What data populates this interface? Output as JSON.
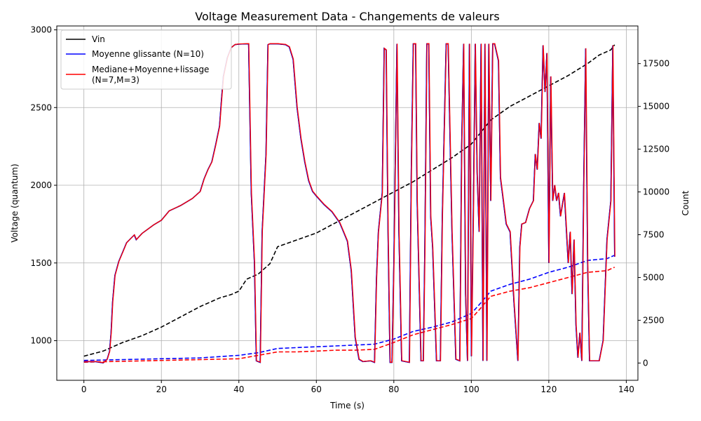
{
  "chart_data": {
    "type": "line",
    "title": "Voltage Measurement Data - Changements de valeurs",
    "xlabel": "Time (s)",
    "ylabel": "Voltage (quantum)",
    "y2label": "Count",
    "xlim": [
      -7,
      143
    ],
    "ylim": [
      745,
      3025
    ],
    "y2lim": [
      -1010,
      19700
    ],
    "xticks": [
      0,
      20,
      40,
      60,
      80,
      100,
      120,
      140
    ],
    "yticks": [
      1000,
      1500,
      2000,
      2500,
      3000
    ],
    "y2ticks": [
      0,
      2500,
      5000,
      7500,
      10000,
      12500,
      15000,
      17500
    ],
    "grid": true,
    "legend_position": "top-left",
    "legend": [
      {
        "label": "Vin",
        "color": "#000000",
        "style": "solid"
      },
      {
        "label": "Moyenne glissante (N=10)",
        "color": "#0000ff",
        "style": "solid"
      },
      {
        "label": "Mediane+Moyenne+lissage",
        "label2": "(N=7,M=3)",
        "color": "#ff0000",
        "style": "solid"
      }
    ],
    "voltage_series": {
      "name": "Vin",
      "color": "#000000",
      "points": [
        [
          0,
          865
        ],
        [
          3,
          865
        ],
        [
          5,
          857
        ],
        [
          6,
          880
        ],
        [
          6.6,
          930
        ],
        [
          7,
          1050
        ],
        [
          7.4,
          1250
        ],
        [
          8,
          1420
        ],
        [
          9,
          1510
        ],
        [
          10,
          1570
        ],
        [
          11,
          1630
        ],
        [
          12,
          1655
        ],
        [
          13,
          1680
        ],
        [
          13.5,
          1650
        ],
        [
          15,
          1690
        ],
        [
          18,
          1745
        ],
        [
          20,
          1775
        ],
        [
          22,
          1835
        ],
        [
          25,
          1870
        ],
        [
          28,
          1915
        ],
        [
          30,
          1960
        ],
        [
          31,
          2040
        ],
        [
          32,
          2100
        ],
        [
          33,
          2150
        ],
        [
          34,
          2260
        ],
        [
          35,
          2380
        ],
        [
          35.5,
          2550
        ],
        [
          36,
          2700
        ],
        [
          37,
          2820
        ],
        [
          38,
          2885
        ],
        [
          39,
          2905
        ],
        [
          40,
          2908
        ],
        [
          42.5,
          2910
        ],
        [
          43.2,
          1950
        ],
        [
          44,
          1500
        ],
        [
          44.5,
          870
        ],
        [
          45.5,
          860
        ],
        [
          46,
          1700
        ],
        [
          47,
          2200
        ],
        [
          47.5,
          2905
        ],
        [
          48,
          2910
        ],
        [
          50,
          2910
        ],
        [
          52,
          2905
        ],
        [
          53,
          2890
        ],
        [
          54,
          2810
        ],
        [
          55,
          2500
        ],
        [
          56,
          2300
        ],
        [
          57,
          2150
        ],
        [
          58,
          2030
        ],
        [
          59,
          1960
        ],
        [
          60,
          1930
        ],
        [
          62,
          1875
        ],
        [
          64,
          1830
        ],
        [
          66,
          1760
        ],
        [
          67,
          1700
        ],
        [
          68,
          1640
        ],
        [
          69,
          1450
        ],
        [
          70,
          1020
        ],
        [
          71,
          880
        ],
        [
          72,
          865
        ],
        [
          74,
          870
        ],
        [
          75,
          860
        ],
        [
          75.5,
          1400
        ],
        [
          76,
          1700
        ],
        [
          77,
          1950
        ],
        [
          77.5,
          2880
        ],
        [
          78,
          2870
        ],
        [
          78.5,
          1700
        ],
        [
          79,
          860
        ],
        [
          79.5,
          860
        ],
        [
          80,
          1500
        ],
        [
          80.8,
          2910
        ],
        [
          81.3,
          1700
        ],
        [
          82,
          870
        ],
        [
          83,
          865
        ],
        [
          84,
          860
        ],
        [
          84.5,
          2100
        ],
        [
          85,
          2910
        ],
        [
          85.6,
          2910
        ],
        [
          86,
          1900
        ],
        [
          87,
          870
        ],
        [
          87.6,
          870
        ],
        [
          88,
          1600
        ],
        [
          88.5,
          2910
        ],
        [
          89,
          2910
        ],
        [
          89.5,
          1800
        ],
        [
          90,
          1600
        ],
        [
          91,
          870
        ],
        [
          92,
          870
        ],
        [
          92.5,
          1800
        ],
        [
          93.5,
          2910
        ],
        [
          94,
          2910
        ],
        [
          95,
          1700
        ],
        [
          96,
          880
        ],
        [
          97,
          870
        ],
        [
          97.5,
          2250
        ],
        [
          98,
          2910
        ],
        [
          98.5,
          1300
        ],
        [
          99,
          870
        ],
        [
          99.5,
          2910
        ],
        [
          100,
          900
        ],
        [
          100.5,
          1800
        ],
        [
          101,
          2910
        ],
        [
          101.5,
          2080
        ],
        [
          102,
          1700
        ],
        [
          102.5,
          2910
        ],
        [
          103,
          870
        ],
        [
          103.5,
          2910
        ],
        [
          104,
          870
        ],
        [
          104.5,
          2910
        ],
        [
          105,
          1900
        ],
        [
          105.5,
          2910
        ],
        [
          106,
          2910
        ],
        [
          107,
          2800
        ],
        [
          107.5,
          2050
        ],
        [
          108,
          1950
        ],
        [
          109,
          1750
        ],
        [
          110,
          1700
        ],
        [
          111,
          1250
        ],
        [
          112,
          870
        ],
        [
          112.5,
          1600
        ],
        [
          113,
          1750
        ],
        [
          114,
          1760
        ],
        [
          115,
          1850
        ],
        [
          116,
          1900
        ],
        [
          116.5,
          2200
        ],
        [
          117,
          2100
        ],
        [
          117.5,
          2400
        ],
        [
          118,
          2300
        ],
        [
          118.5,
          2900
        ],
        [
          119,
          2600
        ],
        [
          119.5,
          2850
        ],
        [
          120,
          1500
        ],
        [
          120.5,
          2700
        ],
        [
          121,
          1900
        ],
        [
          121.5,
          2000
        ],
        [
          122,
          1900
        ],
        [
          122.5,
          1950
        ],
        [
          123,
          1800
        ],
        [
          124,
          1950
        ],
        [
          125,
          1500
        ],
        [
          125.5,
          1700
        ],
        [
          126,
          1300
        ],
        [
          126.5,
          1650
        ],
        [
          127,
          1100
        ],
        [
          127.5,
          890
        ],
        [
          128,
          1050
        ],
        [
          128.5,
          870
        ],
        [
          129,
          2000
        ],
        [
          129.5,
          2880
        ],
        [
          130,
          1500
        ],
        [
          130.5,
          870
        ],
        [
          131,
          870
        ],
        [
          133,
          870
        ],
        [
          134,
          1000
        ],
        [
          135,
          1650
        ],
        [
          136,
          1900
        ],
        [
          136.5,
          2900
        ],
        [
          137,
          1540
        ]
      ]
    },
    "count_series": [
      {
        "name": "Vin",
        "color": "#000000",
        "style": "dashed",
        "points": [
          [
            0,
            400
          ],
          [
            5,
            700
          ],
          [
            10,
            1200
          ],
          [
            15,
            1600
          ],
          [
            20,
            2100
          ],
          [
            25,
            2700
          ],
          [
            30,
            3300
          ],
          [
            35,
            3800
          ],
          [
            38,
            4000
          ],
          [
            40,
            4200
          ],
          [
            42,
            4900
          ],
          [
            45,
            5200
          ],
          [
            48,
            5800
          ],
          [
            50,
            6800
          ],
          [
            55,
            7200
          ],
          [
            60,
            7600
          ],
          [
            65,
            8200
          ],
          [
            70,
            8800
          ],
          [
            75,
            9400
          ],
          [
            80,
            10000
          ],
          [
            85,
            10600
          ],
          [
            90,
            11300
          ],
          [
            95,
            12000
          ],
          [
            100,
            12800
          ],
          [
            105,
            14200
          ],
          [
            110,
            15000
          ],
          [
            115,
            15600
          ],
          [
            120,
            16200
          ],
          [
            125,
            16800
          ],
          [
            130,
            17500
          ],
          [
            133,
            18000
          ],
          [
            136,
            18300
          ],
          [
            137,
            18600
          ]
        ]
      },
      {
        "name": "Moyenne glissante (N=10)",
        "color": "#0000ff",
        "style": "dashed",
        "points": [
          [
            0,
            150
          ],
          [
            10,
            200
          ],
          [
            20,
            250
          ],
          [
            30,
            300
          ],
          [
            40,
            450
          ],
          [
            45,
            600
          ],
          [
            50,
            850
          ],
          [
            55,
            900
          ],
          [
            60,
            950
          ],
          [
            65,
            1000
          ],
          [
            70,
            1050
          ],
          [
            75,
            1100
          ],
          [
            80,
            1400
          ],
          [
            85,
            1850
          ],
          [
            90,
            2100
          ],
          [
            95,
            2400
          ],
          [
            100,
            2900
          ],
          [
            102,
            3400
          ],
          [
            105,
            4200
          ],
          [
            110,
            4600
          ],
          [
            115,
            4900
          ],
          [
            120,
            5300
          ],
          [
            125,
            5600
          ],
          [
            130,
            6000
          ],
          [
            135,
            6100
          ],
          [
            137,
            6300
          ]
        ]
      },
      {
        "name": "Mediane+Moyenne+lissage",
        "color": "#ff0000",
        "style": "dashed",
        "points": [
          [
            0,
            50
          ],
          [
            10,
            100
          ],
          [
            20,
            150
          ],
          [
            30,
            200
          ],
          [
            40,
            250
          ],
          [
            45,
            450
          ],
          [
            50,
            650
          ],
          [
            55,
            650
          ],
          [
            60,
            700
          ],
          [
            65,
            750
          ],
          [
            70,
            750
          ],
          [
            75,
            800
          ],
          [
            80,
            1200
          ],
          [
            85,
            1650
          ],
          [
            90,
            1950
          ],
          [
            95,
            2250
          ],
          [
            100,
            2600
          ],
          [
            102,
            3100
          ],
          [
            105,
            3900
          ],
          [
            110,
            4200
          ],
          [
            115,
            4400
          ],
          [
            120,
            4700
          ],
          [
            125,
            5000
          ],
          [
            130,
            5300
          ],
          [
            135,
            5400
          ],
          [
            137,
            5600
          ]
        ]
      }
    ]
  }
}
